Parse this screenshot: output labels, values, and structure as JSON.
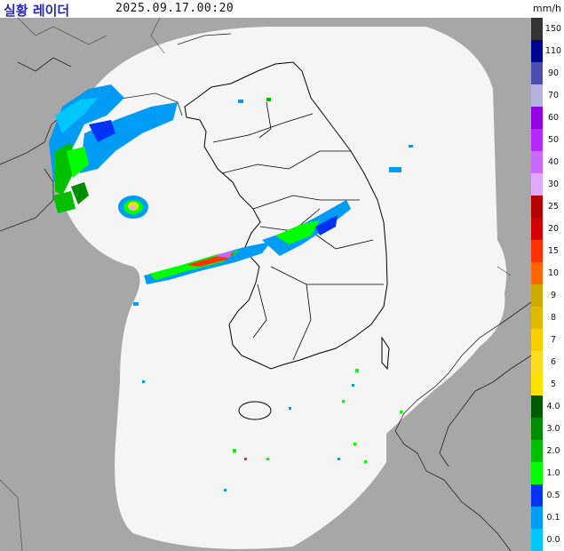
{
  "header": {
    "title": "실황 레이더",
    "timestamp": "2025.09.17.00:20",
    "unit": "mm/h"
  },
  "colors": {
    "outside_bg": "#a7a7a7",
    "coverage": "#f5f5f5",
    "coastline": "#000000",
    "border_outside": "#222222"
  },
  "legend": [
    {
      "label": "150",
      "color": "#333333"
    },
    {
      "label": "110",
      "color": "#000390"
    },
    {
      "label": "90",
      "color": "#4c4eb1"
    },
    {
      "label": "70",
      "color": "#b3b4de"
    },
    {
      "label": "60",
      "color": "#9300e4"
    },
    {
      "label": "50",
      "color": "#b329ff"
    },
    {
      "label": "40",
      "color": "#c969ff"
    },
    {
      "label": "30",
      "color": "#e0a9ff"
    },
    {
      "label": "25",
      "color": "#b40000"
    },
    {
      "label": "20",
      "color": "#d20000"
    },
    {
      "label": "15",
      "color": "#ff3200"
    },
    {
      "label": "10",
      "color": "#ff6600"
    },
    {
      "label": "9",
      "color": "#ccaa00"
    },
    {
      "label": "8",
      "color": "#e0b900"
    },
    {
      "label": "7",
      "color": "#f9cd00"
    },
    {
      "label": "6",
      "color": "#ffdc1f"
    },
    {
      "label": "5",
      "color": "#ffe100"
    },
    {
      "label": "4.0",
      "color": "#005a00"
    },
    {
      "label": "3.0",
      "color": "#008c00"
    },
    {
      "label": "2.0",
      "color": "#00be00"
    },
    {
      "label": "1.0",
      "color": "#00ff00"
    },
    {
      "label": "0.5",
      "color": "#0033f5"
    },
    {
      "label": "0.1",
      "color": "#009bf5"
    },
    {
      "label": "0.0",
      "color": "#00c8ff"
    }
  ]
}
